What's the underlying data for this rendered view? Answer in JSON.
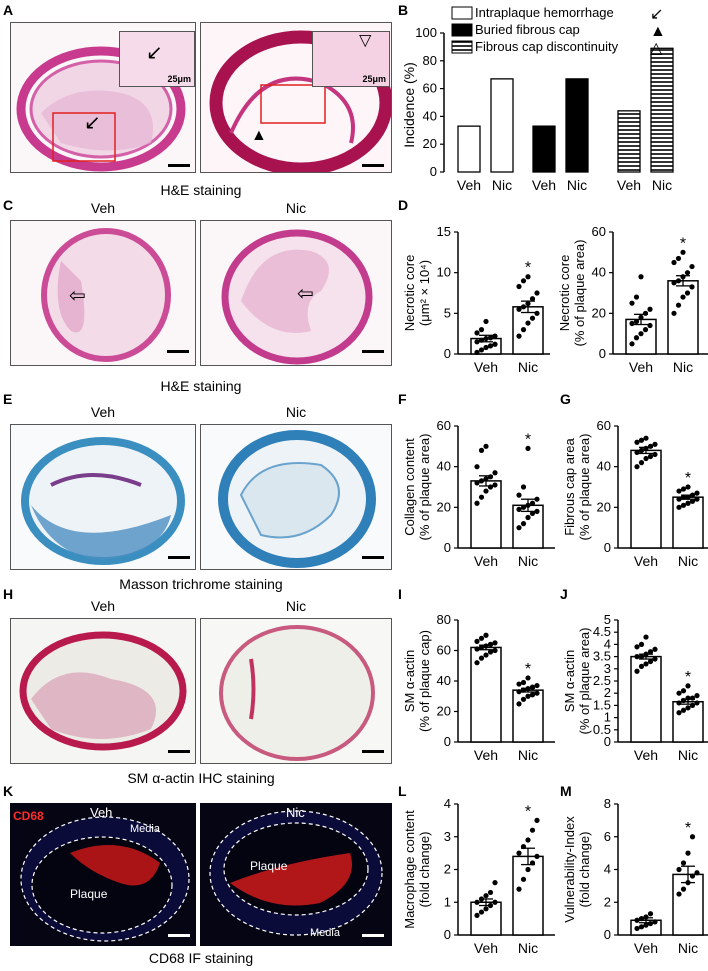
{
  "panel_letters": [
    "A",
    "B",
    "C",
    "D",
    "E",
    "F",
    "G",
    "H",
    "I",
    "J",
    "K",
    "L",
    "M"
  ],
  "groups": {
    "veh": "Veh",
    "nic": "Nic"
  },
  "captions": {
    "a": "H&E staining",
    "c": "H&E staining",
    "e": "Masson trichrome staining",
    "h": "SM α-actin IHC staining",
    "k": "CD68 IF staining"
  },
  "inset_scale": "25μm",
  "k_labels": {
    "marker": "CD68",
    "plaque": "Plaque",
    "media": "Media"
  },
  "chart_data": [
    {
      "panel": "B",
      "type": "bar",
      "ylabel": "Incidence (%)",
      "ylim": [
        0,
        100
      ],
      "yticks": [
        0,
        20,
        40,
        60,
        80,
        100
      ],
      "categories": [
        "Veh",
        "Nic"
      ],
      "series": [
        {
          "name": "Intraplaque hemorrhage",
          "symbol": "↙",
          "fill": "white",
          "values": [
            33,
            67
          ]
        },
        {
          "name": "Buried fibrous cap",
          "symbol": "▲",
          "fill": "black",
          "values": [
            33,
            67
          ]
        },
        {
          "name": "Fibrous cap discontinuity",
          "symbol": "△",
          "fill": "hatch",
          "values": [
            44,
            89
          ]
        }
      ]
    },
    {
      "panel": "D1",
      "type": "bar",
      "ylabel": [
        "Necrotic core",
        "(μm² × 10⁴)"
      ],
      "ylim": [
        0,
        15
      ],
      "yticks": [
        0,
        5,
        10,
        15
      ],
      "categories": [
        "Veh",
        "Nic"
      ],
      "values": [
        1.9,
        5.8
      ],
      "sem": [
        0.4,
        0.7
      ],
      "significant": [
        false,
        true
      ],
      "points": [
        [
          0.2,
          0.5,
          0.8,
          1.0,
          1.2,
          1.5,
          1.7,
          1.9,
          2.0,
          2.2,
          2.6,
          3.0,
          4.0
        ],
        [
          2.2,
          3.0,
          3.8,
          4.4,
          5.0,
          5.5,
          5.8,
          6.2,
          6.8,
          7.5,
          8.3,
          9.0,
          9.5
        ]
      ]
    },
    {
      "panel": "D2",
      "type": "bar",
      "ylabel": [
        "Necrotic core",
        "(% of plaque area)"
      ],
      "ylim": [
        0,
        60
      ],
      "yticks": [
        0,
        20,
        40,
        60
      ],
      "categories": [
        "Veh",
        "Nic"
      ],
      "values": [
        17,
        36
      ],
      "sem": [
        2.5,
        2.5
      ],
      "significant": [
        false,
        true
      ],
      "points": [
        [
          5,
          8,
          10,
          12,
          14,
          15,
          16,
          18,
          20,
          22,
          25,
          28,
          38
        ],
        [
          20,
          24,
          28,
          30,
          33,
          35,
          36,
          38,
          40,
          43,
          45,
          47,
          50
        ]
      ]
    },
    {
      "panel": "F",
      "type": "bar",
      "ylabel": [
        "Collagen content",
        "(% of plaque area)"
      ],
      "ylim": [
        0,
        60
      ],
      "yticks": [
        0,
        20,
        40,
        60
      ],
      "categories": [
        "Veh",
        "Nic"
      ],
      "values": [
        33,
        21
      ],
      "sem": [
        2.5,
        3.0
      ],
      "significant": [
        false,
        true
      ],
      "points": [
        [
          22,
          25,
          28,
          30,
          31,
          32,
          33,
          34,
          35,
          37,
          40,
          48,
          50
        ],
        [
          10,
          12,
          15,
          17,
          18,
          19,
          20,
          21,
          22,
          24,
          26,
          30,
          49
        ]
      ]
    },
    {
      "panel": "G",
      "type": "bar",
      "ylabel": [
        "Fibrous cap area",
        "(% of plaque area)"
      ],
      "ylim": [
        0,
        60
      ],
      "yticks": [
        0,
        20,
        40,
        60
      ],
      "categories": [
        "Veh",
        "Nic"
      ],
      "values": [
        48,
        25
      ],
      "sem": [
        1.5,
        1.0
      ],
      "significant": [
        false,
        true
      ],
      "points": [
        [
          40,
          42,
          44,
          45,
          46,
          47,
          48,
          49,
          50,
          51,
          52,
          53,
          54
        ],
        [
          20,
          21,
          22,
          23,
          24,
          24,
          25,
          25,
          26,
          27,
          28,
          29,
          30
        ]
      ]
    },
    {
      "panel": "I",
      "type": "bar",
      "ylabel": [
        "SM α-actin",
        "(% of plaque cap)"
      ],
      "ylim": [
        0,
        80
      ],
      "yticks": [
        0,
        20,
        40,
        60,
        80
      ],
      "categories": [
        "Veh",
        "Nic"
      ],
      "values": [
        62,
        34
      ],
      "sem": [
        1.5,
        1.2
      ],
      "significant": [
        false,
        true
      ],
      "points": [
        [
          52,
          55,
          57,
          59,
          60,
          61,
          62,
          63,
          64,
          65,
          66,
          68,
          70
        ],
        [
          25,
          28,
          30,
          31,
          32,
          33,
          34,
          35,
          36,
          37,
          38,
          39,
          42
        ]
      ]
    },
    {
      "panel": "J",
      "type": "bar",
      "ylabel": [
        "SM α-actin",
        "(% of plaque area)"
      ],
      "ylim": [
        0,
        5
      ],
      "yticks": [
        0,
        0.5,
        1,
        1.5,
        2,
        2.5,
        3,
        3.5,
        4,
        4.5,
        5
      ],
      "categories": [
        "Veh",
        "Nic"
      ],
      "values": [
        3.5,
        1.65
      ],
      "sem": [
        0.1,
        0.1
      ],
      "significant": [
        false,
        true
      ],
      "points": [
        [
          2.9,
          3.1,
          3.2,
          3.3,
          3.4,
          3.5,
          3.5,
          3.6,
          3.7,
          3.8,
          3.9,
          4.0,
          4.3
        ],
        [
          1.2,
          1.3,
          1.4,
          1.5,
          1.6,
          1.6,
          1.7,
          1.8,
          1.8,
          1.9,
          2.0,
          2.1,
          2.3
        ]
      ]
    },
    {
      "panel": "L",
      "type": "bar",
      "ylabel": [
        "Macrophage content",
        "(fold change)"
      ],
      "ylim": [
        0,
        4
      ],
      "yticks": [
        0,
        1,
        2,
        3,
        4
      ],
      "categories": [
        "Veh",
        "Nic"
      ],
      "values": [
        1.0,
        2.4
      ],
      "sem": [
        0.1,
        0.25
      ],
      "significant": [
        false,
        true
      ],
      "points": [
        [
          0.6,
          0.7,
          0.8,
          0.9,
          1.0,
          1.0,
          1.1,
          1.2,
          1.3,
          1.6
        ],
        [
          1.4,
          1.7,
          2.0,
          2.2,
          2.4,
          2.5,
          2.7,
          2.9,
          3.2,
          3.5
        ]
      ]
    },
    {
      "panel": "M",
      "type": "bar",
      "ylabel": [
        "Vulnerability-Index",
        "(fold change)"
      ],
      "ylim": [
        0,
        8
      ],
      "yticks": [
        0,
        2,
        4,
        6,
        8
      ],
      "categories": [
        "Veh",
        "Nic"
      ],
      "values": [
        0.9,
        3.7
      ],
      "sem": [
        0.15,
        0.5
      ],
      "significant": [
        false,
        true
      ],
      "points": [
        [
          0.4,
          0.5,
          0.6,
          0.7,
          0.8,
          0.9,
          1.0,
          1.1,
          1.3
        ],
        [
          2.5,
          2.8,
          3.2,
          3.6,
          3.8,
          4.0,
          4.4,
          5.0,
          6.0
        ]
      ]
    }
  ]
}
